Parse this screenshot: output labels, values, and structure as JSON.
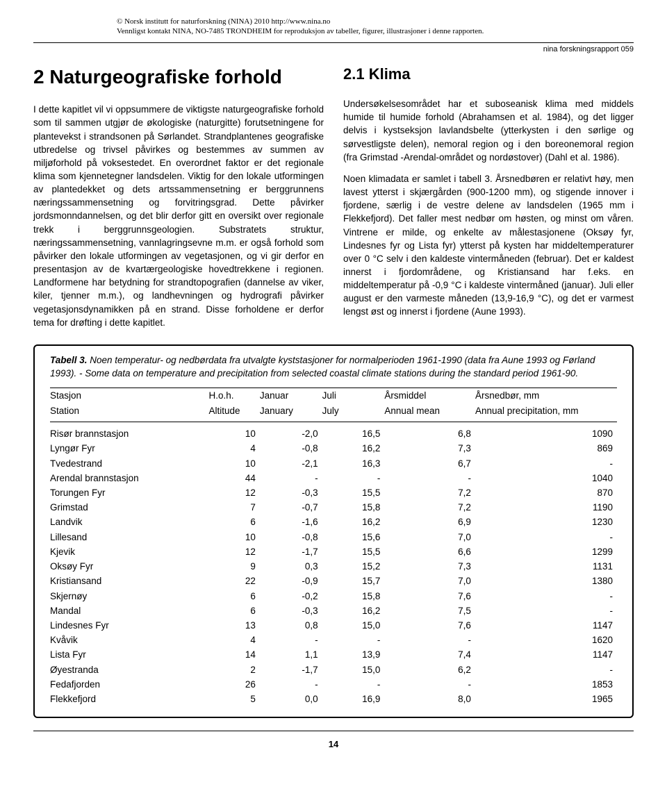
{
  "copyright": {
    "line1": "© Norsk institutt for naturforskning (NINA) 2010 http://www.nina.no",
    "line2": "Vennligst kontakt NINA, NO-7485 TRONDHEIM for reproduksjon av tabeller, figurer, illustrasjoner i denne rapporten."
  },
  "report_id": "nina forskningsrapport 059",
  "left": {
    "title": "2 Naturgeografiske forhold",
    "body": "I dette kapitlet vil vi oppsummere de viktigste naturgeografiske forhold som til sammen utgjør de økologiske (naturgitte) forutsetningene for plantevekst i strandsonen på Sørlandet. Strandplantenes geografiske utbredelse og trivsel påvirkes og bestemmes av summen av miljøforhold på voksestedet. En overordnet faktor er det regionale klima som kjennetegner landsdelen. Viktig for den lokale utformingen av plantedekket og dets artssammensetning er berggrunnens næringssammensetning og forvitringsgrad. Dette påvirker jordsmonndannelsen, og det blir derfor gitt en oversikt over regionale trekk i berggrunnsgeologien. Substratets struktur, næringssammensetning, vannlagringsevne m.m. er også forhold som påvirker den lokale utformingen av vegetasjonen, og vi gir derfor en presentasjon av de kvartærgeologiske hovedtrekkene i regionen. Landformene har betydning for strandtopografien (dannelse av viker, kiler, tjenner m.m.), og landhevningen og hydrografi påvirker vegetasjonsdynamikken på en strand. Disse forholdene er derfor tema for drøfting i dette kapitlet."
  },
  "right": {
    "title": "2.1 Klima",
    "p1": "Undersøkelsesområdet har et suboseanisk klima med middels humide til humide forhold (Abrahamsen et al. 1984), og det ligger delvis i kystseksjon lavlandsbelte (ytterkysten i den sørlige og sørvestligste delen), nemoral region og i den boreonemoral region (fra Grimstad -Arendal-området og nordøstover) (Dahl et al. 1986).",
    "p2": "Noen klimadata er samlet i tabell 3. Årsnedbøren er relativt høy, men lavest ytterst i skjærgården (900-1200 mm), og stigende innover i fjordene, særlig i de vestre delene av landsdelen (1965 mm i Flekkefjord). Det faller mest nedbør om høsten, og minst om våren. Vintrene er milde, og enkelte av målestasjonene (Oksøy fyr, Lindesnes fyr og Lista fyr) ytterst på kysten har middeltemperaturer over 0 °C selv i den kaldeste vintermåneden (februar). Det er kaldest innerst i fjordområdene, og Kristiansand har f.eks. en middeltemperatur på -0,9 °C i kaldeste vintermåned (januar). Juli eller august er den varmeste måneden (13,9-16,9 °C), og det er varmest lengst øst og innerst i fjordene (Aune 1993)."
  },
  "table": {
    "caption_lead": "Tabell 3.",
    "caption_rest": " Noen temperatur- og nedbørdata fra utvalgte kyststasjoner for normalperioden 1961-1990 (data fra Aune 1993 og Førland 1993). - Some data on temperature and precipitation from selected coastal climate stations during the standard period 1961-90.",
    "headers": {
      "station1": "Stasjon",
      "station2": "Station",
      "alt1": "H.o.h.",
      "alt2": "Altitude",
      "jan1": "Januar",
      "jan2": "January",
      "jul1": "Juli",
      "jul2": "July",
      "ann1": "Årsmiddel",
      "ann2": "Annual mean",
      "prec1": "Årsnedbør, mm",
      "prec2": "Annual precipitation, mm"
    },
    "rows": [
      {
        "s": "Risør brannstasjon",
        "a": "10",
        "jan": "-2,0",
        "jul": "16,5",
        "am": "6,8",
        "ap": "1090"
      },
      {
        "s": "Lyngør Fyr",
        "a": "4",
        "jan": "-0,8",
        "jul": "16,2",
        "am": "7,3",
        "ap": "869"
      },
      {
        "s": "Tvedestrand",
        "a": "10",
        "jan": "-2,1",
        "jul": "16,3",
        "am": "6,7",
        "ap": "-"
      },
      {
        "s": "Arendal brannstasjon",
        "a": "44",
        "jan": "-",
        "jul": "-",
        "am": "-",
        "ap": "1040"
      },
      {
        "s": "Torungen Fyr",
        "a": "12",
        "jan": "-0,3",
        "jul": "15,5",
        "am": "7,2",
        "ap": "870"
      },
      {
        "s": "Grimstad",
        "a": "7",
        "jan": "-0,7",
        "jul": "15,8",
        "am": "7,2",
        "ap": "1190"
      },
      {
        "s": "Landvik",
        "a": "6",
        "jan": "-1,6",
        "jul": "16,2",
        "am": "6,9",
        "ap": "1230"
      },
      {
        "s": "Lillesand",
        "a": "10",
        "jan": "-0,8",
        "jul": "15,6",
        "am": "7,0",
        "ap": "-"
      },
      {
        "s": "Kjevik",
        "a": "12",
        "jan": "-1,7",
        "jul": "15,5",
        "am": "6,6",
        "ap": "1299"
      },
      {
        "s": "Oksøy Fyr",
        "a": "9",
        "jan": "0,3",
        "jul": "15,2",
        "am": "7,3",
        "ap": "1131"
      },
      {
        "s": "Kristiansand",
        "a": "22",
        "jan": "-0,9",
        "jul": "15,7",
        "am": "7,0",
        "ap": "1380"
      },
      {
        "s": "Skjernøy",
        "a": "6",
        "jan": "-0,2",
        "jul": "15,8",
        "am": "7,6",
        "ap": "-"
      },
      {
        "s": "Mandal",
        "a": "6",
        "jan": "-0,3",
        "jul": "16,2",
        "am": "7,5",
        "ap": "-"
      },
      {
        "s": "Lindesnes Fyr",
        "a": "13",
        "jan": "0,8",
        "jul": "15,0",
        "am": "7,6",
        "ap": "1147"
      },
      {
        "s": "Kvåvik",
        "a": "4",
        "jan": "-",
        "jul": "-",
        "am": "-",
        "ap": "1620"
      },
      {
        "s": "Lista Fyr",
        "a": "14",
        "jan": "1,1",
        "jul": "13,9",
        "am": "7,4",
        "ap": "1147"
      },
      {
        "s": "Øyestranda",
        "a": "2",
        "jan": "-1,7",
        "jul": "15,0",
        "am": "6,2",
        "ap": "-"
      },
      {
        "s": "Fedafjorden",
        "a": "26",
        "jan": "-",
        "jul": "-",
        "am": "-",
        "ap": "1853"
      },
      {
        "s": "Flekkefjord",
        "a": "5",
        "jan": "0,0",
        "jul": "16,9",
        "am": "8,0",
        "ap": "1965"
      }
    ],
    "col_widths": {
      "station": "28%",
      "alt": "9%",
      "jan": "11%",
      "jul": "11%",
      "am": "16%",
      "ap": "25%"
    }
  },
  "page_number": "14"
}
